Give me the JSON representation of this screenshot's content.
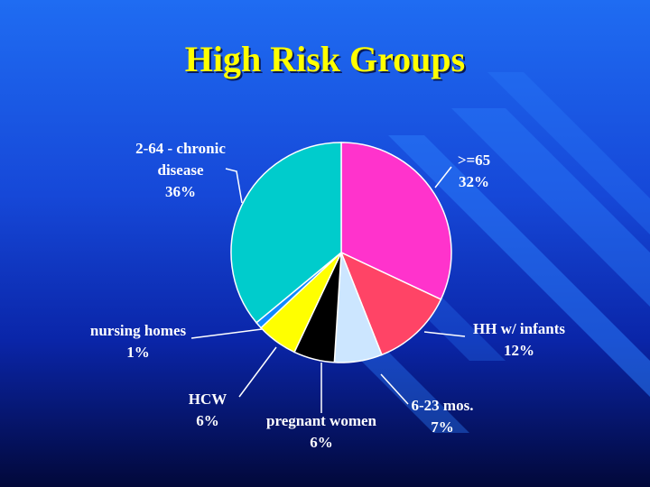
{
  "slide": {
    "title": "High Risk Groups",
    "background_top": "#1f6cf2",
    "background_bottom": "#02083a",
    "title_color": "#ffff00"
  },
  "chart_data": {
    "type": "pie",
    "title": "High Risk Groups",
    "slices": [
      {
        "label_lines": [
          ">=65"
        ],
        "percent_text": "32%",
        "value": 32,
        "color": "#ff33cc"
      },
      {
        "label_lines": [
          "HH w/ infants"
        ],
        "percent_text": "12%",
        "value": 12,
        "color": "#ff4466"
      },
      {
        "label_lines": [
          "6-23 mos."
        ],
        "percent_text": "7%",
        "value": 7,
        "color": "#cce6ff"
      },
      {
        "label_lines": [
          "pregnant women"
        ],
        "percent_text": "6%",
        "value": 6,
        "color": "#000000"
      },
      {
        "label_lines": [
          "HCW"
        ],
        "percent_text": "6%",
        "value": 6,
        "color": "#ffff00"
      },
      {
        "label_lines": [
          "nursing homes"
        ],
        "percent_text": "1%",
        "value": 1,
        "color": "#1188ff"
      },
      {
        "label_lines": [
          "2-64 - chronic",
          "disease"
        ],
        "percent_text": "36%",
        "value": 36,
        "color": "#00cccc"
      }
    ]
  }
}
